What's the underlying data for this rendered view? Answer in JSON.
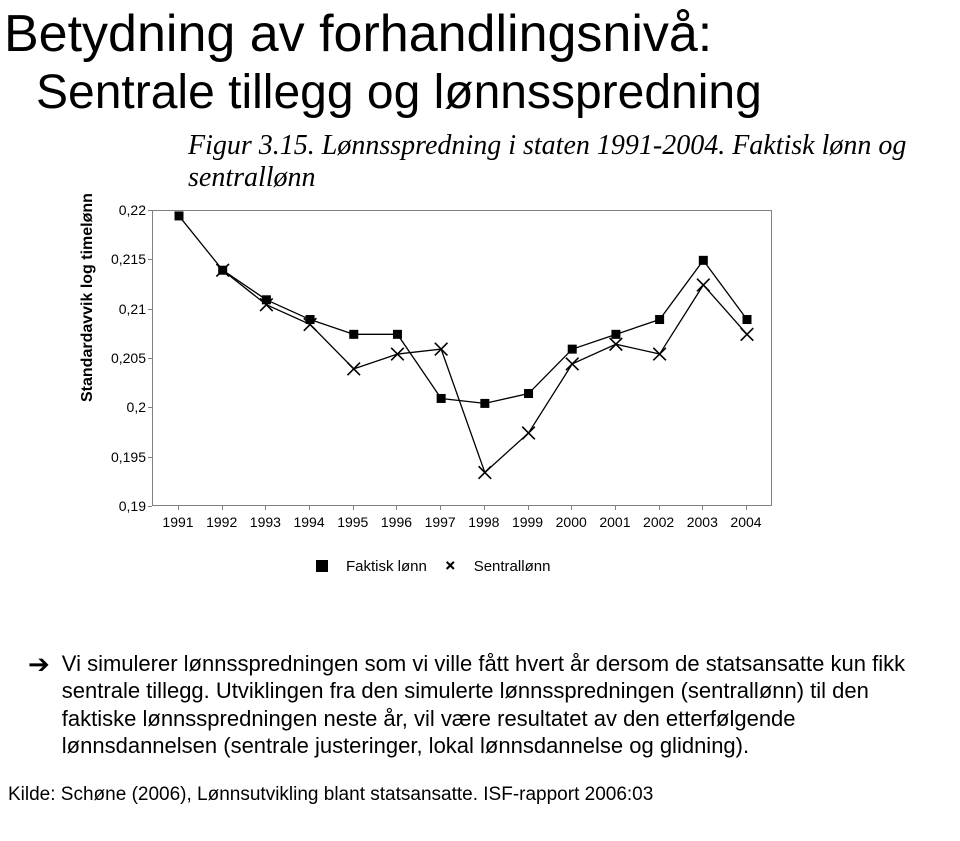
{
  "title_line1": "Betydning av forhandlingsnivå:",
  "title_line2": "Sentrale tillegg og lønnsspredning",
  "figure_caption": "Figur 3.15. Lønnsspredning i staten 1991-2004. Faktisk lønn og sentrallønn",
  "chart": {
    "type": "line",
    "ylabel": "Standardavvik log timelønn",
    "x_categories": [
      "1991",
      "1992",
      "1993",
      "1994",
      "1995",
      "1996",
      "1997",
      "1998",
      "1999",
      "2000",
      "2001",
      "2002",
      "2003",
      "2004"
    ],
    "y_ticks": [
      0.19,
      0.195,
      0.2,
      0.205,
      0.21,
      0.215,
      0.22
    ],
    "y_tick_labels": [
      "0,19",
      "0,195",
      "0,2",
      "0,205",
      "0,21",
      "0,215",
      "0,22"
    ],
    "ylim": [
      0.19,
      0.22
    ],
    "series": [
      {
        "name": "Faktisk lønn",
        "marker": "square",
        "color": "#000000",
        "values": [
          0.2195,
          0.214,
          0.211,
          0.209,
          0.2075,
          0.2075,
          0.201,
          0.2005,
          0.2015,
          0.206,
          0.2075,
          0.209,
          0.215,
          0.209
        ]
      },
      {
        "name": "Sentrallønn",
        "marker": "x",
        "color": "#000000",
        "values": [
          null,
          0.214,
          0.2105,
          0.2085,
          0.204,
          0.2055,
          0.206,
          0.1935,
          0.1975,
          0.2045,
          0.2065,
          0.2055,
          0.2125,
          0.2075
        ]
      }
    ],
    "marker_size": 9,
    "line_width": 1.3,
    "background_color": "#ffffff",
    "axis_color": "#808080",
    "text_color": "#000000",
    "tick_fontsize": 14,
    "label_fontsize": 16
  },
  "legend": {
    "item1": "Faktisk lønn",
    "item2": "Sentrallønn"
  },
  "bullet_text": "Vi simulerer lønnsspredningen som vi ville fått hvert år dersom de statsansatte kun fikk sentrale tillegg. Utviklingen fra den simulerte lønnsspredningen (sentrallønn) til den faktiske lønnsspredningen neste år, vil være resultatet av den etterfølgende lønnsdannelsen (sentrale justeringer, lokal lønnsdannelse og glidning).",
  "source_text": "Kilde: Schøne (2006), Lønnsutvikling blant statsansatte. ISF-rapport 2006:03"
}
